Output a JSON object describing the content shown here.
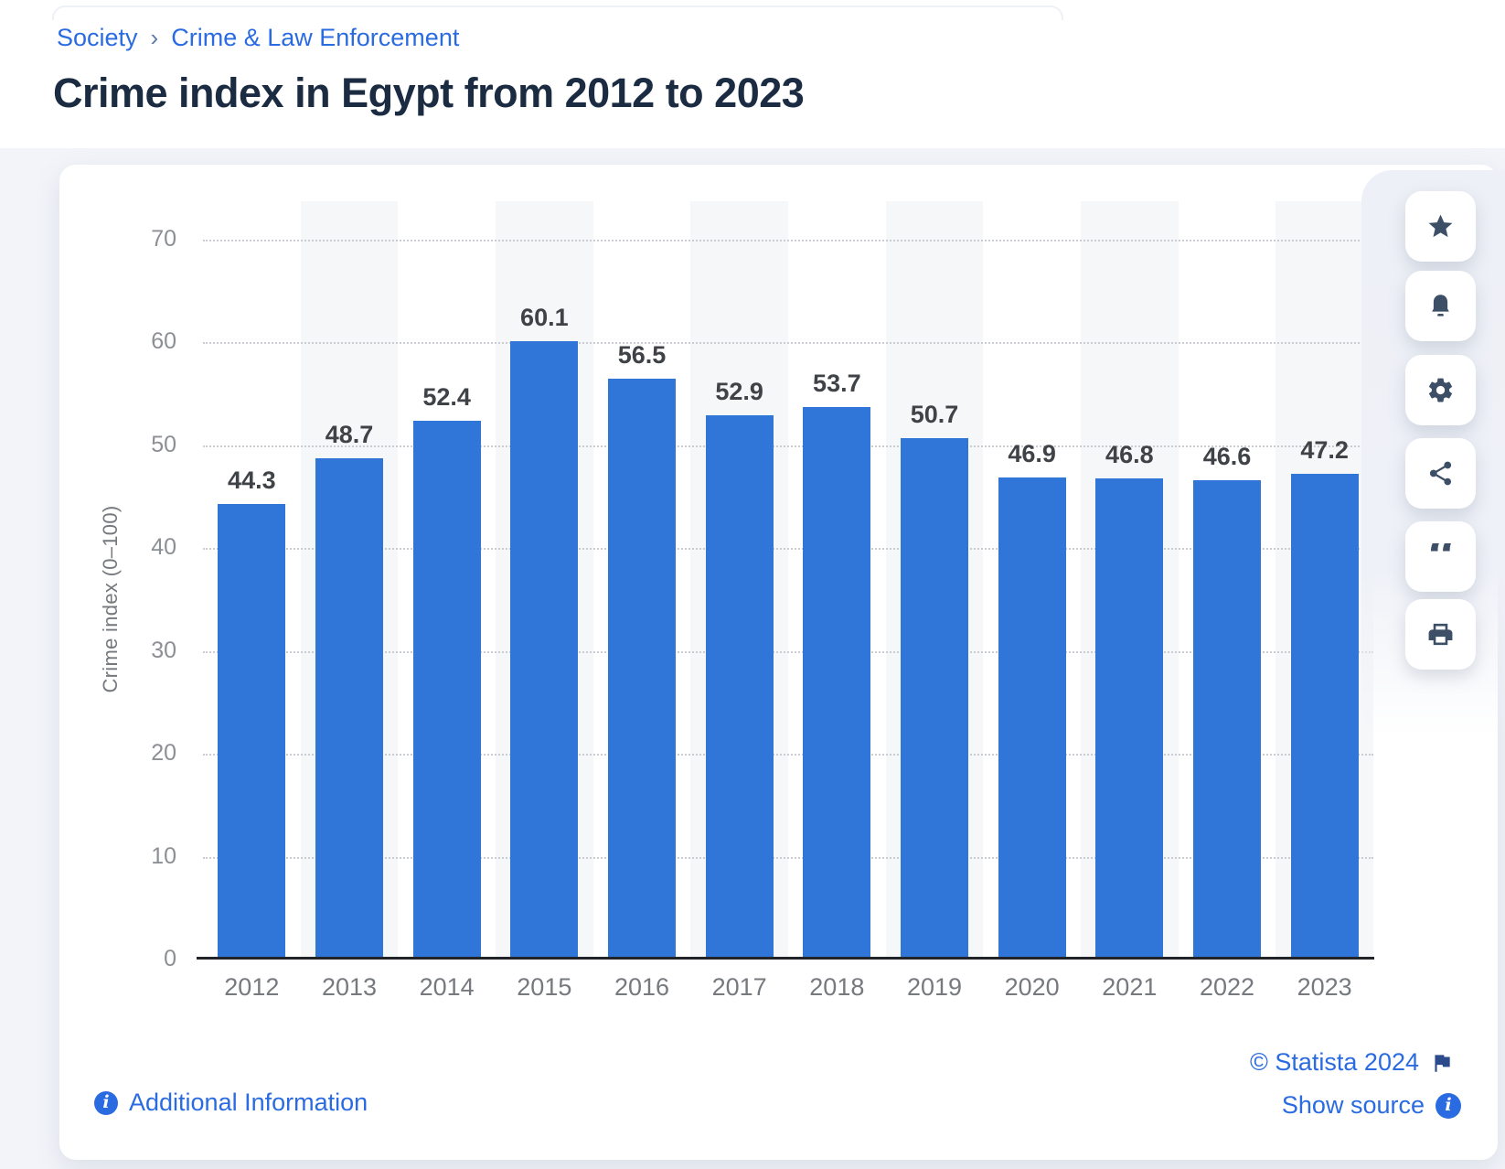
{
  "breadcrumb": {
    "items": [
      "Society",
      "Crime & Law Enforcement"
    ],
    "separator": "›"
  },
  "page_title": "Crime index in Egypt from 2012 to 2023",
  "chart_data": {
    "type": "bar",
    "title": "Crime index in Egypt from 2012 to 2023",
    "categories": [
      "2012",
      "2013",
      "2014",
      "2015",
      "2016",
      "2017",
      "2018",
      "2019",
      "2020",
      "2021",
      "2022",
      "2023"
    ],
    "values": [
      44.3,
      48.7,
      52.4,
      60.1,
      56.5,
      52.9,
      53.7,
      50.7,
      46.9,
      46.8,
      46.6,
      47.2
    ],
    "xlabel": "",
    "ylabel": "Crime index (0–100)",
    "ylim": [
      0,
      70
    ],
    "yticks": [
      0,
      10,
      20,
      30,
      40,
      50,
      60,
      70
    ],
    "grid": "horizontal-dotted",
    "legend": "none",
    "bar_color": "#3076d9",
    "alt_band_color": "#f6f7f9",
    "value_labels": [
      "44.3",
      "48.7",
      "52.4",
      "60.1",
      "56.5",
      "52.9",
      "53.7",
      "50.7",
      "46.9",
      "46.8",
      "46.6",
      "47.2"
    ]
  },
  "toolbar": {
    "icons": [
      "star-icon",
      "bell-icon",
      "gear-icon",
      "share-icon",
      "quote-icon",
      "printer-icon"
    ]
  },
  "footer": {
    "additional_information": "Additional Information",
    "copyright": "© Statista 2024",
    "show_source": "Show source"
  },
  "colors": {
    "link_blue": "#2a6be2",
    "bar_blue": "#3076d9",
    "title_navy": "#1a2b42",
    "icon_slate": "#3d4f66",
    "flag_navy": "#2c4b8c",
    "page_bg": "#f2f4f9"
  }
}
